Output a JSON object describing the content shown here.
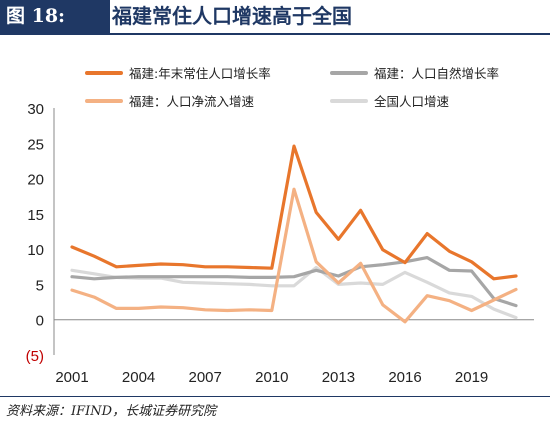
{
  "header": {
    "figure_label": "图 18:",
    "title": "福建常住人口增速高于全国"
  },
  "source": "资料来源：IFIND，长城证券研究院",
  "chart_data": {
    "type": "line",
    "x": [
      2001,
      2002,
      2003,
      2004,
      2005,
      2006,
      2007,
      2008,
      2009,
      2010,
      2011,
      2012,
      2013,
      2014,
      2015,
      2016,
      2017,
      2018,
      2019,
      2020,
      2021
    ],
    "series": [
      {
        "name": "福建:年末常住人口增长率",
        "color": "#e8762c",
        "values": [
          10.3,
          9.0,
          7.5,
          7.7,
          7.9,
          7.8,
          7.5,
          7.5,
          7.4,
          7.3,
          24.6,
          15.2,
          11.4,
          15.5,
          9.9,
          8.1,
          12.2,
          9.7,
          8.2,
          5.8,
          6.2
        ]
      },
      {
        "name": "福建：人口自然增长率",
        "color": "#a6a6a6",
        "values": [
          6.1,
          5.8,
          6.0,
          6.1,
          6.1,
          6.1,
          6.1,
          6.1,
          6.0,
          6.0,
          6.1,
          7.0,
          6.2,
          7.5,
          7.8,
          8.2,
          8.8,
          7.0,
          6.9,
          3.0,
          2.0
        ]
      },
      {
        "name": "福建：人口净流入增速",
        "color": "#f4b183",
        "values": [
          4.2,
          3.2,
          1.6,
          1.6,
          1.8,
          1.7,
          1.4,
          1.3,
          1.4,
          1.3,
          18.5,
          8.2,
          5.2,
          8.0,
          2.1,
          -0.3,
          3.4,
          2.7,
          1.3,
          2.8,
          4.3
        ]
      },
      {
        "name": "全国人口增速",
        "color": "#d9d9d9",
        "values": [
          7.0,
          6.5,
          6.0,
          5.9,
          5.9,
          5.3,
          5.2,
          5.1,
          5.0,
          4.8,
          4.8,
          7.4,
          5.0,
          5.2,
          5.0,
          6.7,
          5.3,
          3.8,
          3.3,
          1.5,
          0.3
        ]
      }
    ],
    "ylim": [
      -5,
      30
    ],
    "yticks": [
      -5,
      0,
      5,
      10,
      15,
      20,
      25,
      30
    ],
    "ytick_labels": [
      "(5)",
      "0",
      "5",
      "10",
      "15",
      "20",
      "25",
      "30"
    ],
    "ytick_colors": [
      "#c00000",
      "#222222",
      "#222222",
      "#222222",
      "#222222",
      "#222222",
      "#222222",
      "#222222"
    ],
    "xticks": [
      2001,
      2004,
      2007,
      2010,
      2013,
      2016,
      2019
    ],
    "grid": false,
    "legend_position": "top"
  }
}
